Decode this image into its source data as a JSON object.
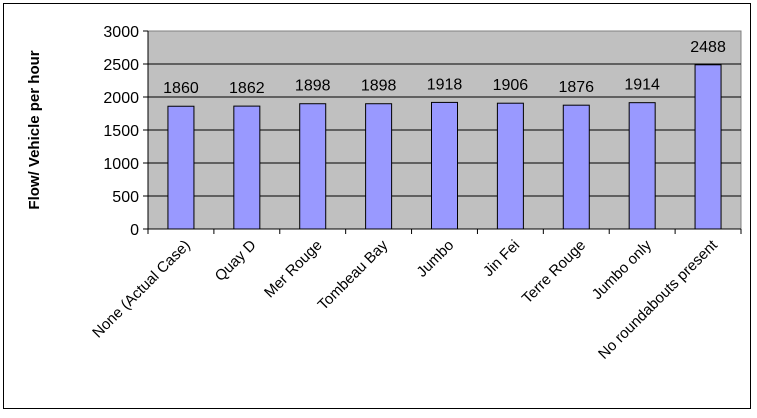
{
  "chart_data": {
    "type": "bar",
    "title": "",
    "xlabel": "",
    "ylabel": "Flow/ Vehicle per hour",
    "categories": [
      "None (Actual Case)",
      "Quay D",
      "Mer Rouge",
      "Tombeau Bay",
      "Jumbo",
      "Jin Fei",
      "Terre Rouge",
      "Jumbo only",
      "No roundabouts present"
    ],
    "values": [
      1860,
      1862,
      1898,
      1898,
      1918,
      1906,
      1876,
      1914,
      2488
    ],
    "ylim": [
      0,
      3000
    ],
    "yticks": [
      0,
      500,
      1000,
      1500,
      2000,
      2500,
      3000
    ],
    "grid": true,
    "legend": "none",
    "colors": {
      "bar": "#9999FF",
      "plot_background": "#C0C0C0",
      "gridline": "#000000"
    }
  }
}
